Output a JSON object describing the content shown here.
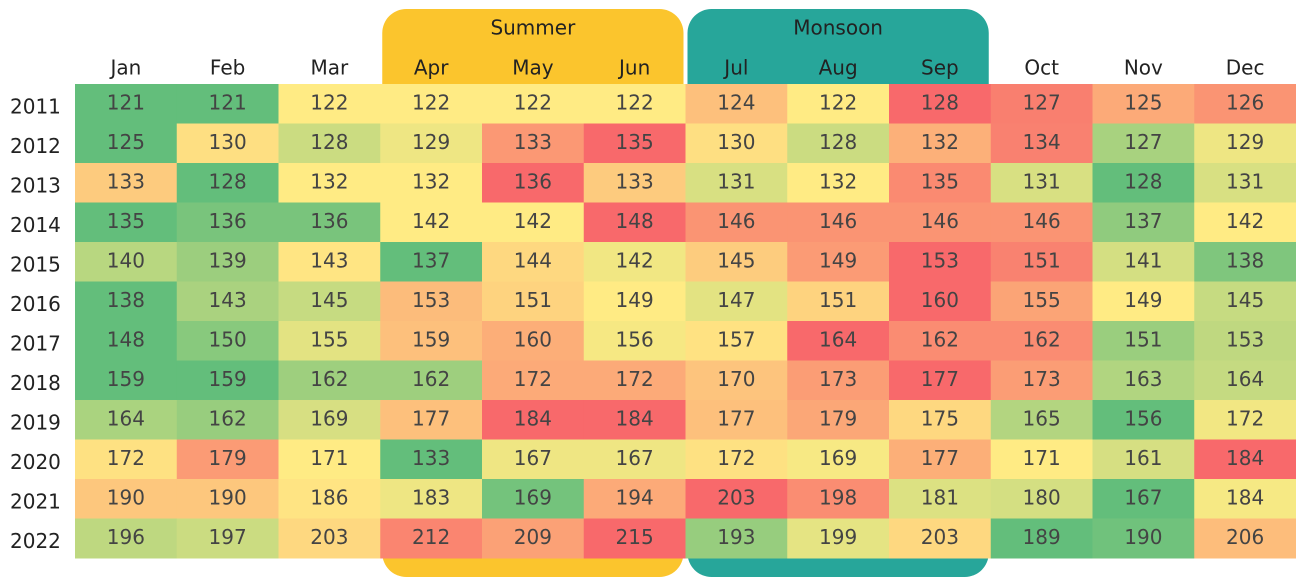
{
  "chart_data": {
    "type": "heatmap",
    "x": [
      "Jan",
      "Feb",
      "Mar",
      "Apr",
      "May",
      "Jun",
      "Jul",
      "Aug",
      "Sep",
      "Oct",
      "Nov",
      "Dec"
    ],
    "y": [
      "2011",
      "2012",
      "2013",
      "2014",
      "2015",
      "2016",
      "2017",
      "2018",
      "2019",
      "2020",
      "2021",
      "2022"
    ],
    "values": [
      [
        121,
        121,
        122,
        122,
        122,
        122,
        124,
        122,
        128,
        127,
        125,
        126
      ],
      [
        125,
        130,
        128,
        129,
        133,
        135,
        130,
        128,
        132,
        134,
        127,
        129
      ],
      [
        133,
        128,
        132,
        132,
        136,
        133,
        131,
        132,
        135,
        131,
        128,
        131
      ],
      [
        135,
        136,
        136,
        142,
        142,
        148,
        146,
        146,
        146,
        146,
        137,
        142
      ],
      [
        140,
        139,
        143,
        137,
        144,
        142,
        145,
        149,
        153,
        151,
        141,
        138
      ],
      [
        138,
        143,
        145,
        153,
        151,
        149,
        147,
        151,
        160,
        155,
        149,
        145
      ],
      [
        148,
        150,
        155,
        159,
        160,
        156,
        157,
        164,
        162,
        162,
        151,
        153
      ],
      [
        159,
        159,
        162,
        162,
        172,
        172,
        170,
        173,
        177,
        173,
        163,
        164
      ],
      [
        164,
        162,
        169,
        177,
        184,
        184,
        177,
        179,
        175,
        165,
        156,
        172
      ],
      [
        172,
        179,
        171,
        133,
        167,
        167,
        172,
        169,
        177,
        171,
        161,
        184
      ],
      [
        190,
        190,
        186,
        183,
        169,
        194,
        203,
        198,
        181,
        180,
        167,
        184
      ],
      [
        196,
        197,
        203,
        212,
        209,
        215,
        193,
        199,
        203,
        189,
        190,
        206
      ]
    ],
    "color_scale": [
      "#63be7b",
      "#ffeb84",
      "#f8696b"
    ],
    "scale": "row",
    "bands": [
      {
        "label": "Summer",
        "start": "Apr",
        "end": "Jun",
        "color": "#fbc52d"
      },
      {
        "label": "Monsoon",
        "start": "Jul",
        "end": "Sep",
        "color": "#27a69a"
      }
    ]
  }
}
